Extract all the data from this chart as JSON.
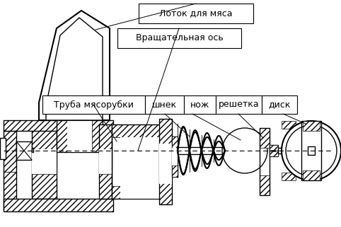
{
  "background_color": "#ffffff",
  "labels": {
    "lotok": "Лоток для мяса",
    "vrash": "Вращательная ось",
    "truba": "Труба мясорубки",
    "shnek": "шнек",
    "nozh": "нож",
    "reshetka": "решетка",
    "disk": "диск"
  },
  "fig_width": 4.82,
  "fig_height": 3.21,
  "dpi": 100
}
